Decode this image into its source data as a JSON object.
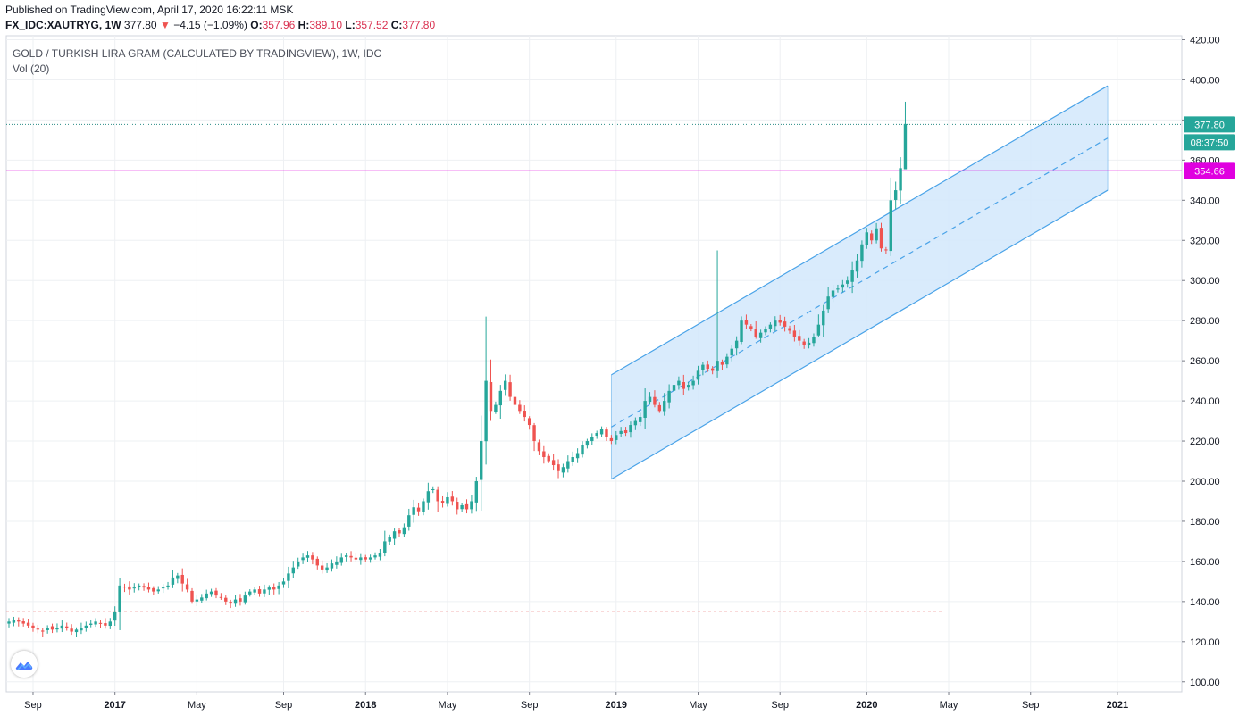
{
  "header": {
    "published": "Published on TradingView.com, April 17, 2020 16:22:11 MSK",
    "symbol": "FX_IDC:XAUTRYG, 1W",
    "last": "377.80",
    "arrow": "▼",
    "change": "−4.15 (−1.09%)",
    "o_label": "O:",
    "o_value": "357.96",
    "h_label": "H:",
    "h_value": "389.10",
    "l_label": "L:",
    "l_value": "357.52",
    "c_label": "C:",
    "c_value": "377.80"
  },
  "legend": {
    "title": "GOLD / TURKISH LIRA GRAM (CALCULATED BY TRADINGVIEW), 1W, IDC",
    "indicator": "Vol (20)"
  },
  "colors": {
    "up": "#26a69a",
    "down": "#ef5350",
    "channel_line": "#4aa3e8",
    "channel_fill": "#d2e8fb",
    "horizontal_level": "#e000e0",
    "price_line": "#2a8c85",
    "grid": "#eef0f3"
  },
  "price_labels": {
    "last_price": "377.80",
    "countdown": "08:37:50",
    "level": "354.66"
  },
  "chart_data": {
    "type": "candlestick",
    "y_axis": {
      "ylim": [
        95,
        422
      ],
      "ticks": [
        "420.00",
        "400.00",
        "380.00",
        "360.00",
        "340.00",
        "320.00",
        "300.00",
        "280.00",
        "260.00",
        "240.00",
        "220.00",
        "200.00",
        "180.00",
        "160.00",
        "140.00",
        "120.00",
        "100.00"
      ]
    },
    "x_axis": {
      "ticks": [
        {
          "label": "Sep",
          "week": 5,
          "bold": false
        },
        {
          "label": "2017",
          "week": 22,
          "bold": true
        },
        {
          "label": "May",
          "week": 39,
          "bold": false
        },
        {
          "label": "Sep",
          "week": 57,
          "bold": false
        },
        {
          "label": "2018",
          "week": 74,
          "bold": true
        },
        {
          "label": "May",
          "week": 91,
          "bold": false
        },
        {
          "label": "Sep",
          "week": 108,
          "bold": false
        },
        {
          "label": "2019",
          "week": 126,
          "bold": true
        },
        {
          "label": "May",
          "week": 143,
          "bold": false
        },
        {
          "label": "Sep",
          "week": 160,
          "bold": false
        },
        {
          "label": "2020",
          "week": 178,
          "bold": true
        },
        {
          "label": "May",
          "week": 195,
          "bold": false
        },
        {
          "label": "Sep",
          "week": 212,
          "bold": false
        },
        {
          "label": "2021",
          "week": 230,
          "bold": true
        }
      ]
    },
    "series_closes": [
      130,
      131,
      130,
      129,
      128,
      127,
      126,
      125,
      127,
      126,
      127,
      128,
      127,
      125,
      126,
      127,
      128,
      129,
      130,
      129,
      128,
      130,
      135,
      148,
      147,
      146,
      147,
      148,
      147,
      146,
      145,
      146,
      147,
      148,
      152,
      153,
      149,
      146,
      140,
      141,
      142,
      144,
      145,
      143,
      142,
      140,
      139,
      141,
      140,
      143,
      145,
      146,
      144,
      146,
      147,
      146,
      148,
      150,
      154,
      157,
      160,
      162,
      163,
      161,
      158,
      156,
      157,
      159,
      160,
      162,
      163,
      162,
      161,
      162,
      161,
      162,
      163,
      164,
      170,
      172,
      175,
      174,
      177,
      183,
      187,
      185,
      190,
      195,
      196,
      190,
      189,
      192,
      190,
      186,
      188,
      186,
      190,
      200,
      220,
      250,
      235,
      238,
      245,
      250,
      242,
      238,
      235,
      232,
      228,
      220,
      215,
      212,
      210,
      208,
      205,
      207,
      210,
      212,
      214,
      218,
      220,
      222,
      224,
      226,
      222,
      220,
      223,
      225,
      224,
      228,
      230,
      232,
      240,
      242,
      238,
      235,
      240,
      245,
      248,
      250,
      246,
      248,
      250,
      255,
      258,
      256,
      255,
      260,
      258,
      262,
      266,
      270,
      280,
      278,
      276,
      272,
      274,
      276,
      278,
      280,
      279,
      277,
      275,
      272,
      270,
      268,
      269,
      272,
      278,
      285,
      292,
      295,
      296,
      298,
      300,
      305,
      310,
      318,
      324,
      320,
      326,
      316,
      315,
      340,
      345,
      356,
      378
    ],
    "first_week": 0,
    "channel": {
      "start_week": 125,
      "end_week": 228,
      "upper": [
        253,
        397
      ],
      "middle": [
        227,
        371
      ],
      "lower": [
        201,
        345
      ]
    },
    "horizontal_level": 354.66,
    "last_close": 377.8
  }
}
